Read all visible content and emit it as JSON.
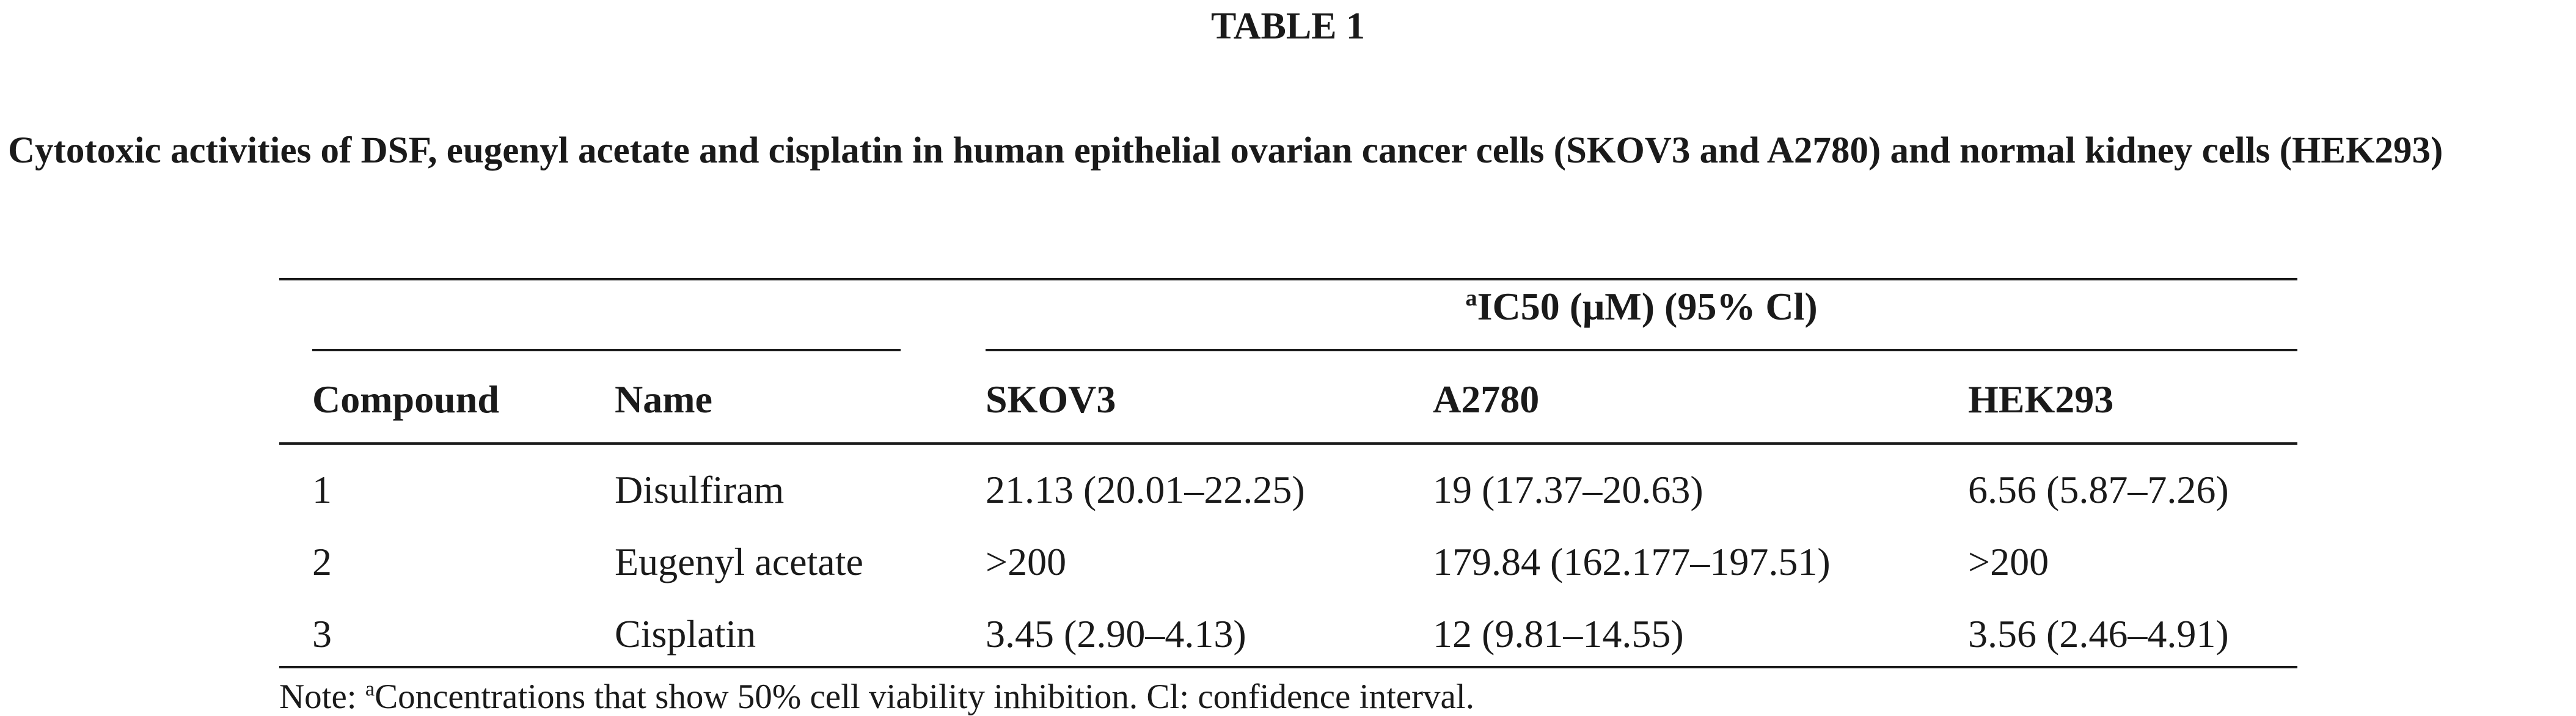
{
  "title": "TABLE 1",
  "caption": "Cytotoxic activities of DSF, eugenyl acetate and cisplatin in human epithelial ovarian cancer cells (SKOV3 and A2780) and normal kidney cells (HEK293)",
  "table": {
    "group_header": {
      "sup": "a",
      "text": "IC50 (μM) (95% Cl)"
    },
    "columns": [
      "Compound",
      "Name",
      "SKOV3",
      "A2780",
      "HEK293"
    ],
    "rows": [
      [
        "1",
        "Disulfiram",
        "21.13 (20.01–22.25)",
        "19 (17.37–20.63)",
        "6.56 (5.87–7.26)"
      ],
      [
        "2",
        "Eugenyl acetate",
        ">200",
        "179.84 (162.177–197.51)",
        ">200"
      ],
      [
        "3",
        "Cisplatin",
        "3.45 (2.90–4.13)",
        "12 (9.81–14.55)",
        "3.56 (2.46–4.91)"
      ]
    ]
  },
  "note": {
    "prefix": "Note: ",
    "sup": "a",
    "text": "Concentrations that show 50% cell viability inhibition. Cl: confidence interval."
  }
}
